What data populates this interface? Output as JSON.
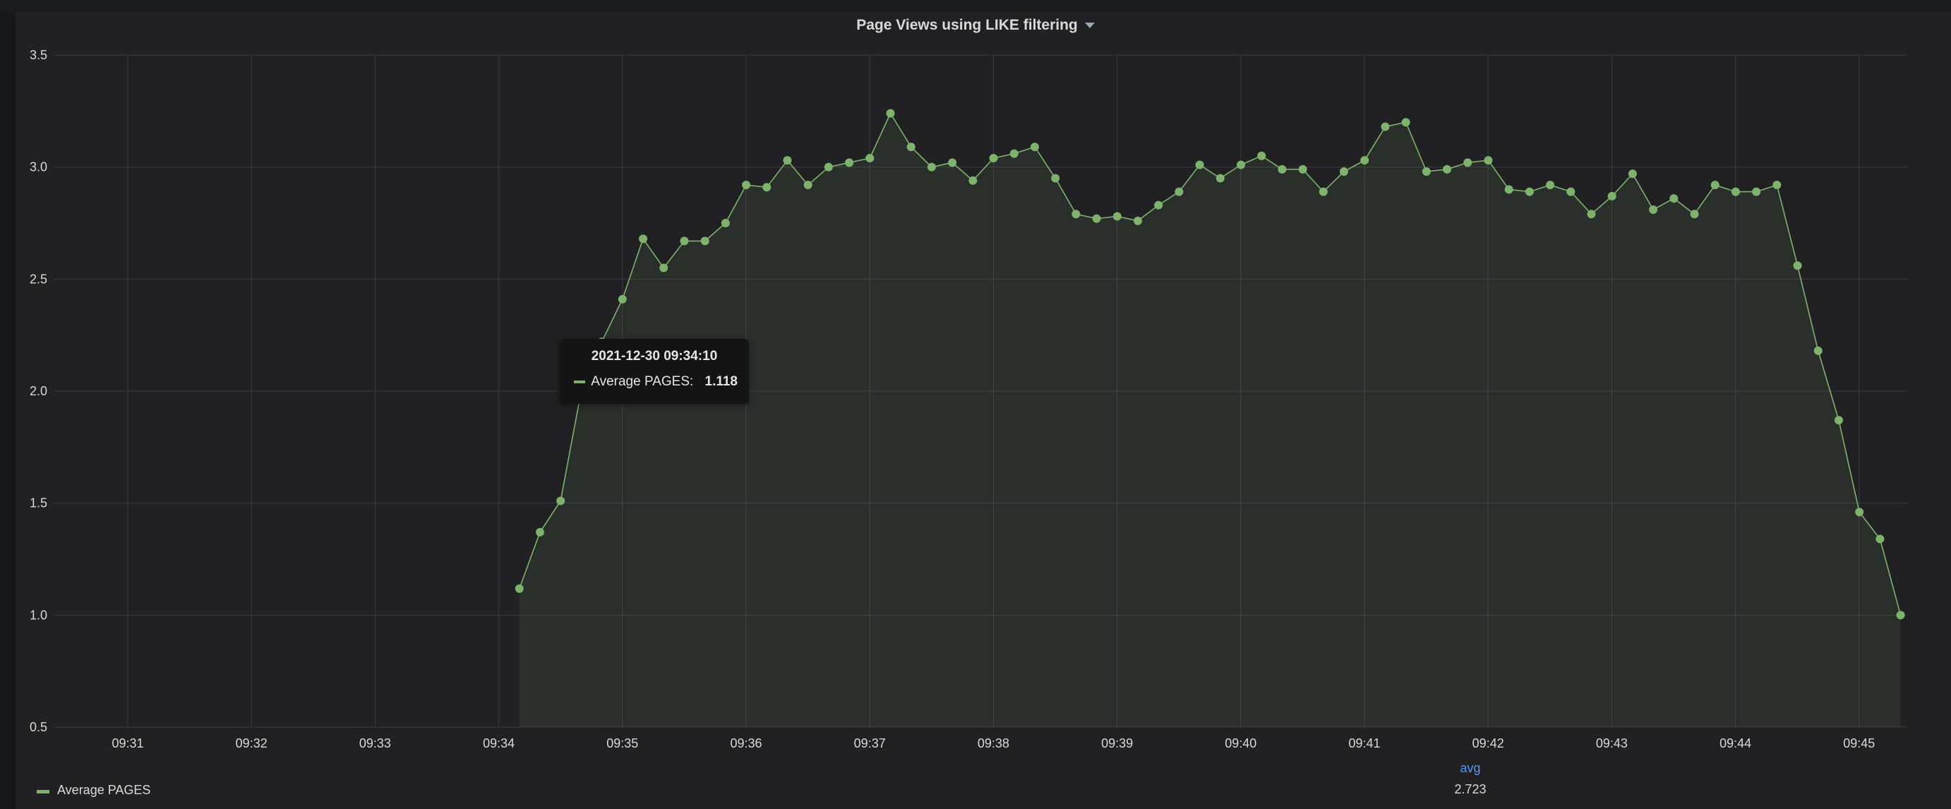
{
  "panel": {
    "title": "Page Views using LIKE filtering"
  },
  "colors": {
    "series": "#7eb26d",
    "background": "#212124",
    "grid": "#3a3b40",
    "text": "#d8d9da",
    "legend_header": "#5794f2"
  },
  "tooltip": {
    "time": "2021-12-30 09:34:10",
    "series_label": "Average PAGES:",
    "value": "1.118"
  },
  "legend": {
    "series_name": "Average PAGES",
    "stat_header": "avg",
    "stat_value": "2.723"
  },
  "chart_data": {
    "type": "line",
    "title": "Page Views using LIKE filtering",
    "xlabel": "",
    "ylabel": "",
    "y_ticks": [
      "0.5",
      "1.0",
      "1.5",
      "2.0",
      "2.5",
      "3.0",
      "3.5"
    ],
    "x_ticks": [
      "09:31",
      "09:32",
      "09:33",
      "09:34",
      "09:35",
      "09:36",
      "09:37",
      "09:38",
      "09:39",
      "09:40",
      "09:41",
      "09:42",
      "09:43",
      "09:44",
      "09:45"
    ],
    "ylim": [
      0.5,
      3.5
    ],
    "xlim_minutes": [
      30.6,
      45.4
    ],
    "x_start_minute": 34.1667,
    "x_step_minutes": 0.1667,
    "grid": true,
    "fill": "area",
    "legend_position": "bottom-left",
    "series": [
      {
        "name": "Average PAGES",
        "values": [
          1.118,
          1.37,
          1.51,
          2.0,
          2.22,
          2.41,
          2.68,
          2.55,
          2.67,
          2.67,
          2.75,
          2.92,
          2.91,
          3.03,
          2.92,
          3.0,
          3.02,
          3.04,
          3.24,
          3.09,
          3.0,
          3.02,
          2.94,
          3.04,
          3.06,
          3.09,
          2.95,
          2.79,
          2.77,
          2.78,
          2.76,
          2.83,
          2.89,
          3.01,
          2.95,
          3.01,
          3.05,
          2.99,
          2.99,
          2.89,
          2.98,
          3.03,
          3.18,
          3.2,
          2.98,
          2.99,
          3.02,
          3.03,
          2.9,
          2.89,
          2.92,
          2.89,
          2.79,
          2.87,
          2.97,
          2.81,
          2.86,
          2.79,
          2.92,
          2.89,
          2.89,
          2.92,
          2.56,
          2.18,
          1.87,
          1.46,
          1.34,
          1.0
        ]
      }
    ]
  }
}
